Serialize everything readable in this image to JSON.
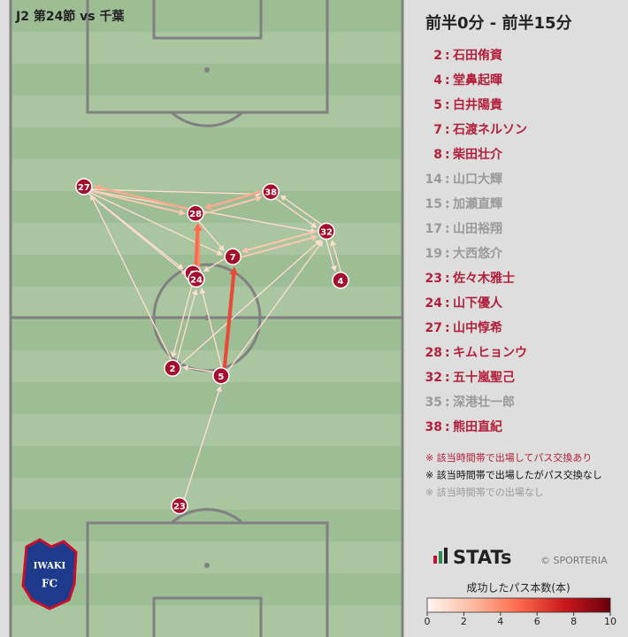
{
  "chart_data": {
    "type": "network",
    "title": "J2 第24節 vs 千葉",
    "xlim": [
      0,
      100
    ],
    "ylim": [
      0,
      100
    ],
    "nodes": [
      {
        "label": 27,
        "x": 18.7,
        "y": 29.3
      },
      {
        "label": 38,
        "x": 66.4,
        "y": 30.1
      },
      {
        "label": 28,
        "x": 47.2,
        "y": 33.5
      },
      {
        "label": 32,
        "x": 80.6,
        "y": 36.3
      },
      {
        "label": 7,
        "x": 56.7,
        "y": 40.3
      },
      {
        "label": 8,
        "x": 46.5,
        "y": 42.9
      },
      {
        "label": 24,
        "x": 47.4,
        "y": 43.8
      },
      {
        "label": 4,
        "x": 84.2,
        "y": 44.0
      },
      {
        "label": 2,
        "x": 41.3,
        "y": 57.8
      },
      {
        "label": 5,
        "x": 53.7,
        "y": 59.0
      },
      {
        "label": 23,
        "x": 43.1,
        "y": 79.4
      }
    ],
    "edges": [
      {
        "source": 9,
        "target": 4,
        "count": 6
      },
      {
        "source": 5,
        "target": 2,
        "count": 5
      },
      {
        "source": 6,
        "target": 2,
        "count": 4
      },
      {
        "source": 2,
        "target": 0,
        "count": 3
      },
      {
        "source": 1,
        "target": 2,
        "count": 3
      },
      {
        "source": 2,
        "target": 1,
        "count": 2
      },
      {
        "source": 0,
        "target": 1,
        "count": 1
      },
      {
        "source": 0,
        "target": 2,
        "count": 2
      },
      {
        "source": 4,
        "target": 3,
        "count": 2
      },
      {
        "source": 3,
        "target": 4,
        "count": 2
      },
      {
        "source": 3,
        "target": 1,
        "count": 1
      },
      {
        "source": 1,
        "target": 3,
        "count": 1
      },
      {
        "source": 3,
        "target": 7,
        "count": 1
      },
      {
        "source": 0,
        "target": 6,
        "count": 1
      },
      {
        "source": 0,
        "target": 4,
        "count": 1
      },
      {
        "source": 0,
        "target": 5,
        "count": 1
      },
      {
        "source": 8,
        "target": 0,
        "count": 1
      },
      {
        "source": 9,
        "target": 3,
        "count": 1
      },
      {
        "source": 10,
        "target": 9,
        "count": 1
      },
      {
        "source": 8,
        "target": 6,
        "count": 1
      },
      {
        "source": 6,
        "target": 8,
        "count": 1
      },
      {
        "source": 9,
        "target": 6,
        "count": 1
      },
      {
        "source": 4,
        "target": 6,
        "count": 1
      },
      {
        "source": 8,
        "target": 3,
        "count": 1
      },
      {
        "source": 7,
        "target": 3,
        "count": 1
      },
      {
        "source": 2,
        "target": 4,
        "count": 1
      },
      {
        "source": 9,
        "target": 8,
        "count": 1
      },
      {
        "source": 0,
        "target": 3,
        "count": 1
      }
    ],
    "colormap": [
      "#fff5f0",
      "#fcbba1",
      "#fb6a4a",
      "#cb181d",
      "#67000d"
    ],
    "clim": [
      0,
      10
    ],
    "cticks": [
      0,
      2,
      4,
      6,
      8,
      10
    ],
    "colorbar_label": "成功したパス本数(本)",
    "node_color": "#a50f2d"
  },
  "panel": {
    "period": "前半0分 - 前半15分",
    "separator": ":",
    "status_colors": {
      "active": "#b3203b",
      "idle": "#111111",
      "absent": "#9a9a9a"
    },
    "players": [
      {
        "number": "2",
        "name": "石田侑資",
        "status": "active"
      },
      {
        "number": "4",
        "name": "堂鼻起暉",
        "status": "active"
      },
      {
        "number": "5",
        "name": "白井陽貴",
        "status": "active"
      },
      {
        "number": "7",
        "name": "石渡ネルソン",
        "status": "active"
      },
      {
        "number": "8",
        "name": "柴田壮介",
        "status": "active"
      },
      {
        "number": "14",
        "name": "山口大輝",
        "status": "absent"
      },
      {
        "number": "15",
        "name": "加瀬直輝",
        "status": "absent"
      },
      {
        "number": "17",
        "name": "山田裕翔",
        "status": "absent"
      },
      {
        "number": "19",
        "name": "大西悠介",
        "status": "absent"
      },
      {
        "number": "23",
        "name": "佐々木雅士",
        "status": "active"
      },
      {
        "number": "24",
        "name": "山下優人",
        "status": "active"
      },
      {
        "number": "27",
        "name": "山中惇希",
        "status": "active"
      },
      {
        "number": "28",
        "name": "キムヒョンウ",
        "status": "active"
      },
      {
        "number": "32",
        "name": "五十嵐聖己",
        "status": "active"
      },
      {
        "number": "35",
        "name": "深港壮一郎",
        "status": "absent"
      },
      {
        "number": "38",
        "name": "熊田直紀",
        "status": "active"
      }
    ],
    "notes": [
      {
        "text": "※ 該当時間帯で出場してパス交換あり",
        "status": "active"
      },
      {
        "text": "※ 該当時間帯で出場したがパス交換なし",
        "status": "idle"
      },
      {
        "text": "※ 該当時間帯での出場なし",
        "status": "absent"
      }
    ],
    "brand": "STATs",
    "credit": "© SPORTERIA",
    "club": [
      "IWAKI",
      "FC"
    ]
  }
}
